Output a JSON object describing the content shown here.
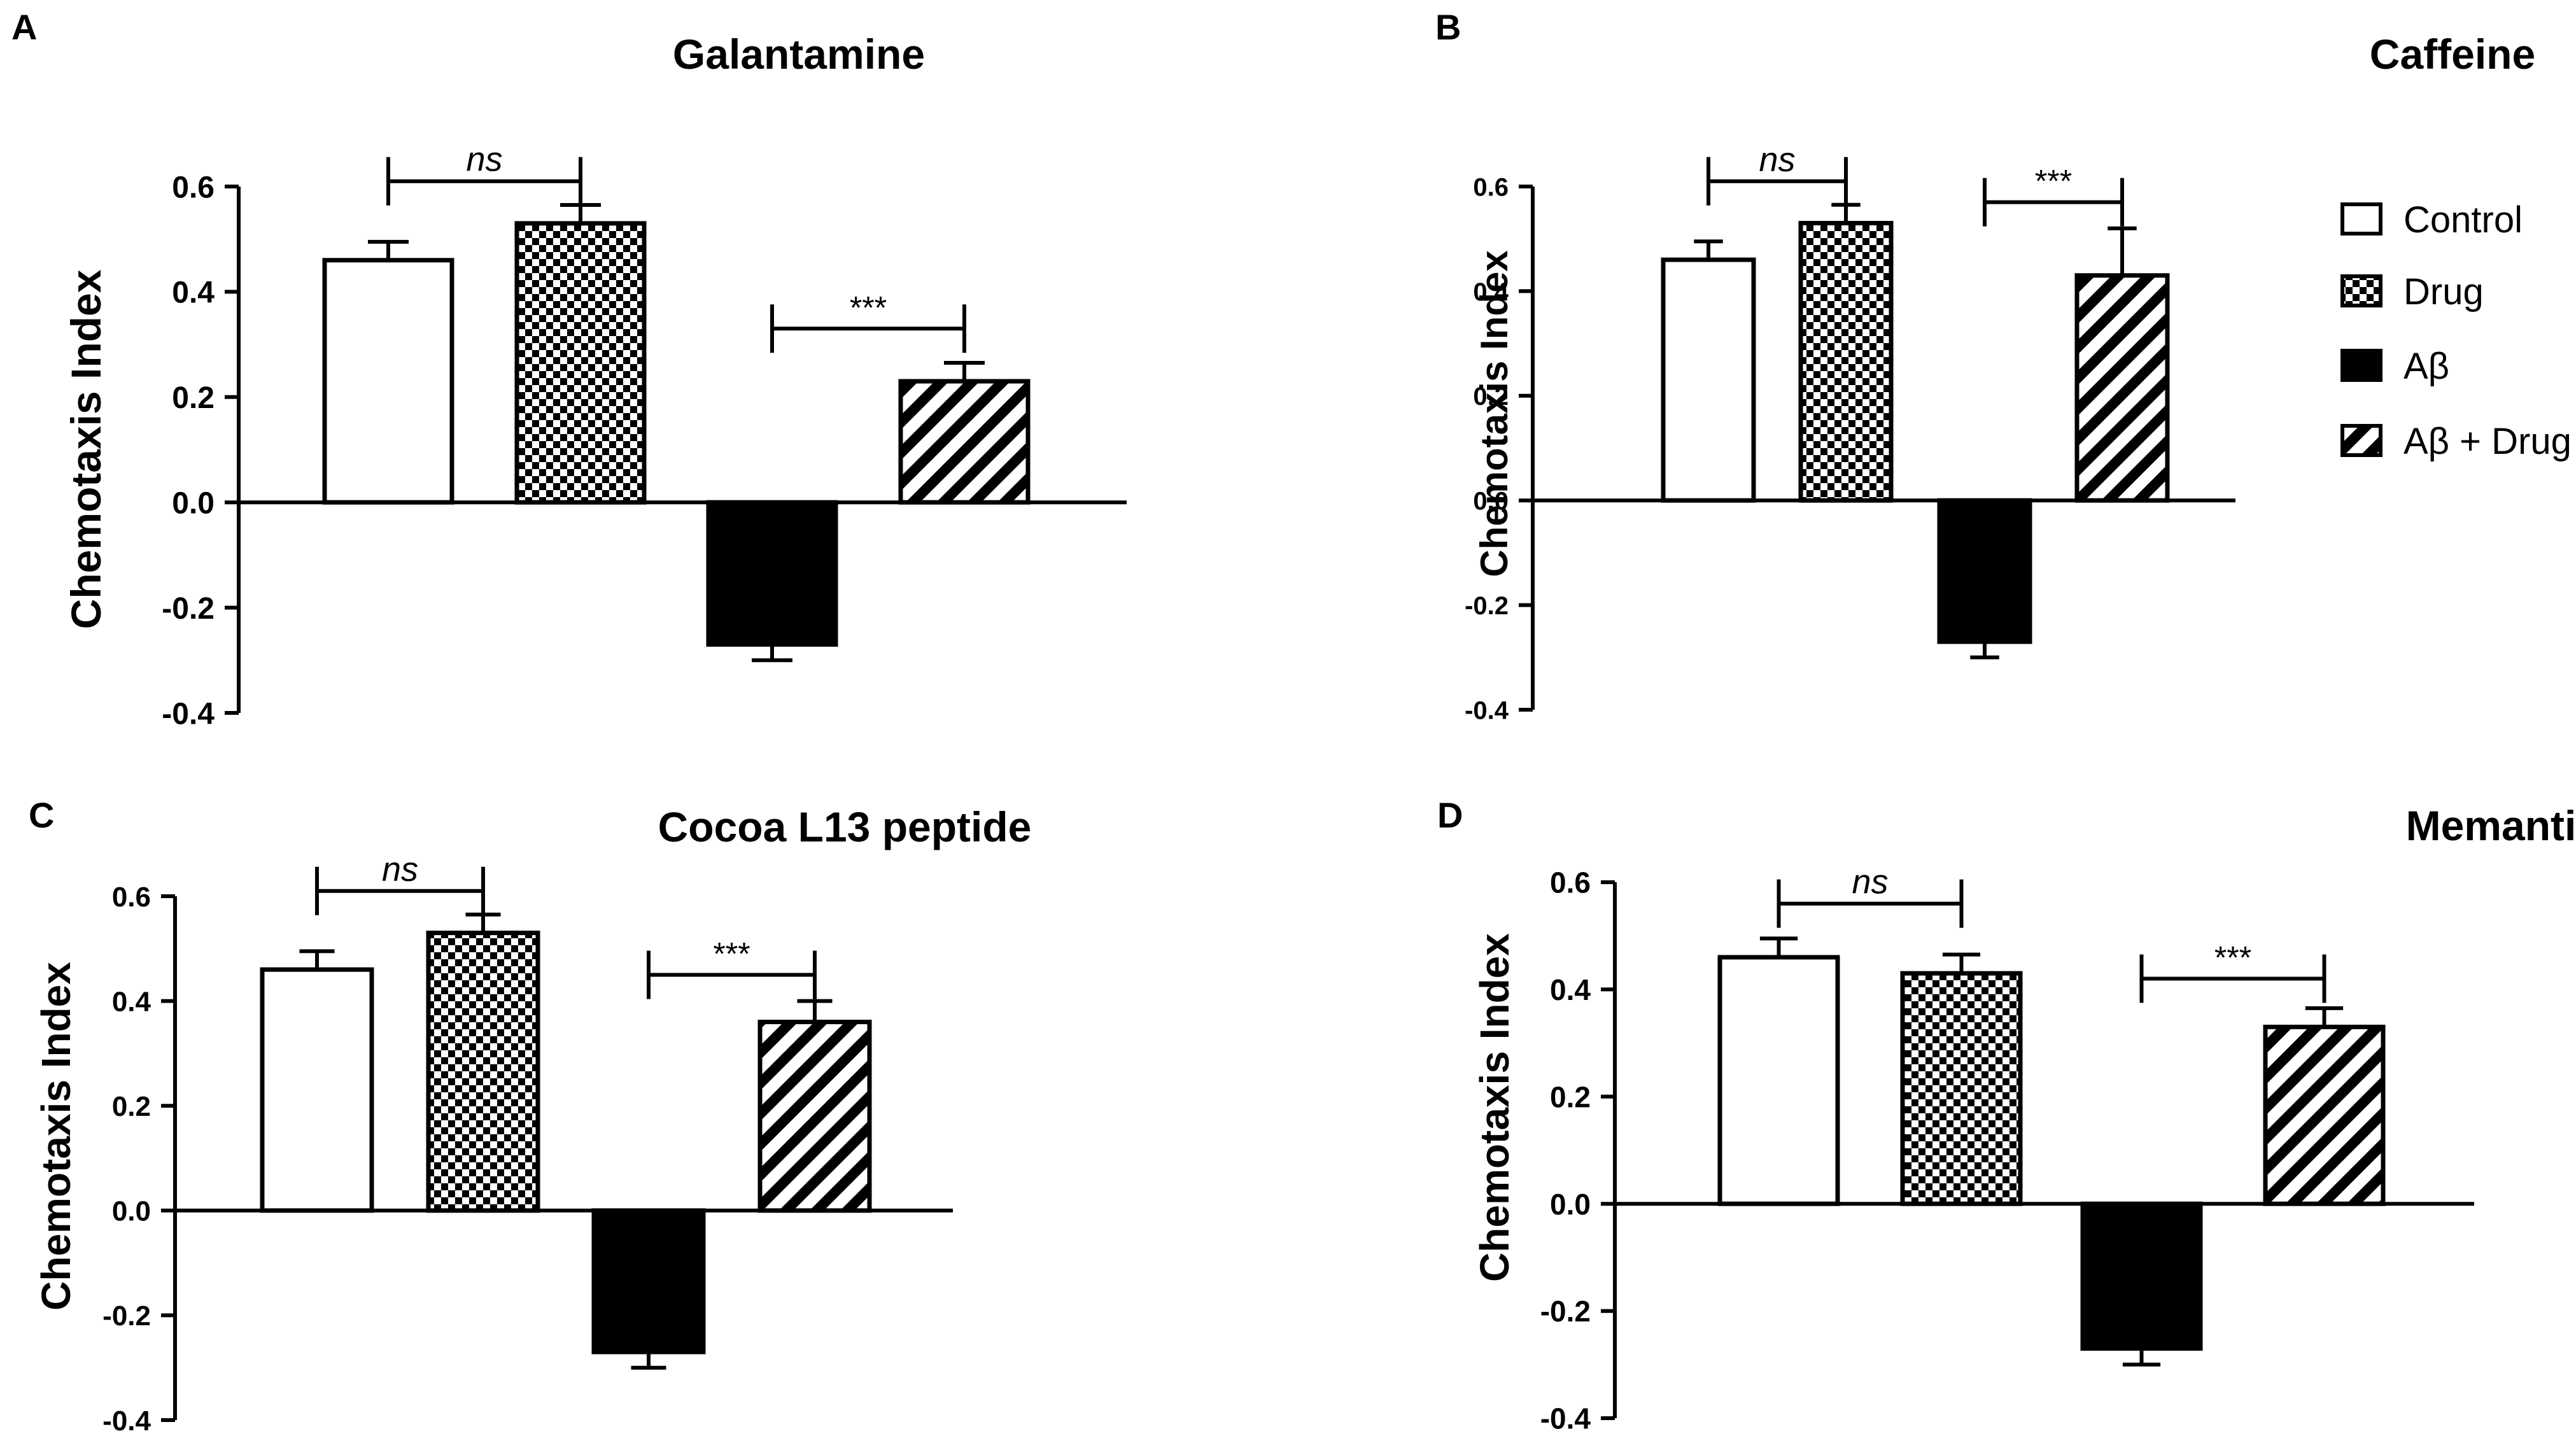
{
  "figure": {
    "y_axis_label": "Chemotaxis Index",
    "legend": [
      {
        "label": "Control",
        "pattern": "white"
      },
      {
        "label": "Drug",
        "pattern": "checker"
      },
      {
        "label": "Aβ",
        "pattern": "black"
      },
      {
        "label": "Aβ + Drug",
        "pattern": "hatch"
      }
    ]
  },
  "chart_data": [
    {
      "panel": "A",
      "type": "bar",
      "title": "Galantamine",
      "ylabel": "Chemotaxis Index",
      "ylim": [
        -0.4,
        0.6
      ],
      "yticks": [
        0.6,
        0.4,
        0.2,
        0.0,
        -0.2,
        -0.4
      ],
      "categories": [
        "Control",
        "Drug",
        "Aβ",
        "Aβ + Drug"
      ],
      "values": [
        0.46,
        0.53,
        -0.27,
        0.23
      ],
      "errors": [
        0.035,
        0.035,
        0.03,
        0.035
      ],
      "annotations": [
        {
          "from": 0,
          "to": 1,
          "text": "ns",
          "italic": true,
          "y": 0.61
        },
        {
          "from": 2,
          "to": 3,
          "text": "***",
          "italic": false,
          "y": 0.33
        }
      ]
    },
    {
      "panel": "B",
      "type": "bar",
      "title": "Caffeine",
      "ylabel": "Chemotaxis Index",
      "ylim": [
        -0.4,
        0.6
      ],
      "yticks": [
        0.6,
        0.4,
        0.2,
        0.0,
        -0.2,
        -0.4
      ],
      "categories": [
        "Control",
        "Drug",
        "Aβ",
        "Aβ + Drug"
      ],
      "values": [
        0.46,
        0.53,
        -0.27,
        0.43
      ],
      "errors": [
        0.035,
        0.035,
        0.03,
        0.09
      ],
      "annotations": [
        {
          "from": 0,
          "to": 1,
          "text": "ns",
          "italic": true,
          "y": 0.61
        },
        {
          "from": 2,
          "to": 3,
          "text": "***",
          "italic": false,
          "y": 0.57
        }
      ]
    },
    {
      "panel": "C",
      "type": "bar",
      "title": "Cocoa L13 peptide",
      "ylabel": "Chemotaxis Index",
      "ylim": [
        -0.4,
        0.6
      ],
      "yticks": [
        0.6,
        0.4,
        0.2,
        0.0,
        -0.2,
        -0.4
      ],
      "categories": [
        "Control",
        "Drug",
        "Aβ",
        "Aβ + Drug"
      ],
      "values": [
        0.46,
        0.53,
        -0.27,
        0.36
      ],
      "errors": [
        0.035,
        0.035,
        0.03,
        0.04
      ],
      "annotations": [
        {
          "from": 0,
          "to": 1,
          "text": "ns",
          "italic": true,
          "y": 0.61
        },
        {
          "from": 2,
          "to": 3,
          "text": "***",
          "italic": false,
          "y": 0.45
        }
      ]
    },
    {
      "panel": "D",
      "type": "bar",
      "title": "Memantine",
      "ylabel": "Chemotaxis Index",
      "ylim": [
        -0.4,
        0.6
      ],
      "yticks": [
        0.6,
        0.4,
        0.2,
        0.0,
        -0.2,
        -0.4
      ],
      "categories": [
        "Control",
        "Drug",
        "Aβ",
        "Aβ + Drug"
      ],
      "values": [
        0.46,
        0.43,
        -0.27,
        0.33
      ],
      "errors": [
        0.035,
        0.035,
        0.03,
        0.035
      ],
      "annotations": [
        {
          "from": 0,
          "to": 1,
          "text": "ns",
          "italic": true,
          "y": 0.56
        },
        {
          "from": 2,
          "to": 3,
          "text": "***",
          "italic": false,
          "y": 0.42
        }
      ]
    }
  ]
}
